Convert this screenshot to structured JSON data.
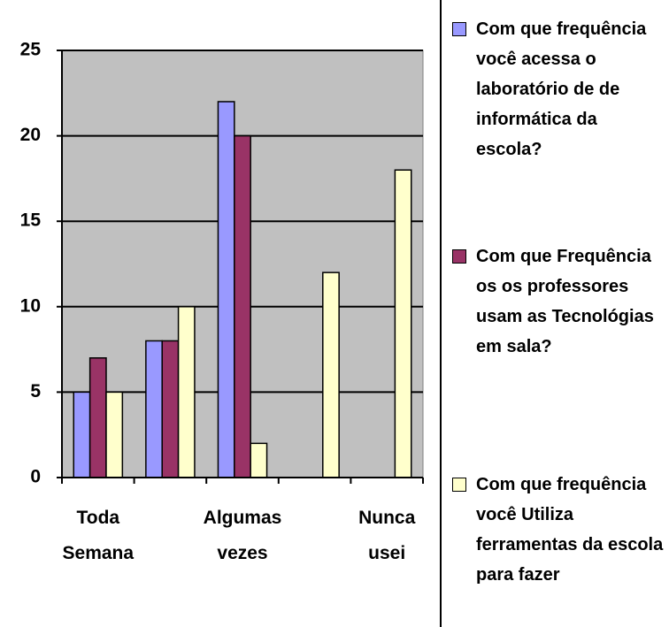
{
  "chart_data": {
    "type": "bar",
    "categories": [
      "Toda Semana",
      null,
      "Algumas vezes",
      null,
      "Nunca usei"
    ],
    "series": [
      {
        "name": "Com que frequência você acessa o laboratório de de informática da escola?",
        "color": "#9999ff",
        "values": [
          5,
          8,
          22,
          null,
          null
        ]
      },
      {
        "name": "Com que Frequência os os professores usam as Tecnológias em sala?",
        "color": "#993366",
        "values": [
          7,
          8,
          20,
          null,
          null
        ]
      },
      {
        "name": "Com que frequência você Utiliza ferramentas da escola para fazer",
        "color": "#ffffcc",
        "values": [
          5,
          10,
          2,
          12,
          18
        ]
      }
    ],
    "ylim": [
      0,
      25
    ],
    "yticks": [
      0,
      5,
      10,
      15,
      20,
      25
    ],
    "grid": true,
    "plot_background": "#c0c0c0",
    "legend": "right"
  }
}
